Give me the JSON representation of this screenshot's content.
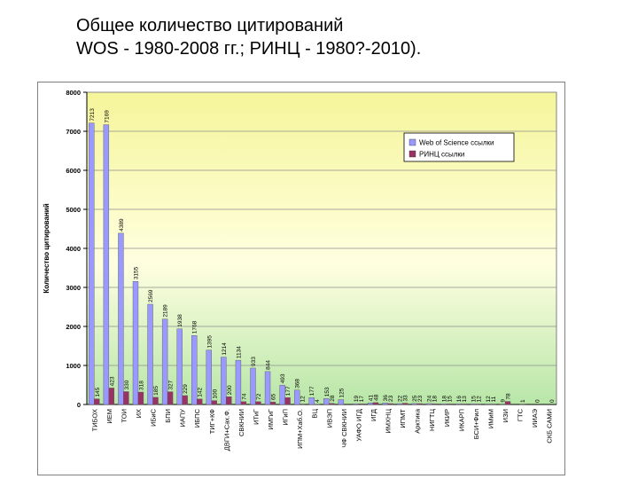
{
  "slide": {
    "title_line1": "Общее количество цитирований",
    "title_line2": "WOS - 1980-2008 гг.; РИНЦ - 1980?-2010)."
  },
  "chart_data": {
    "type": "bar",
    "ylabel": "Количество цитирований",
    "ylim": [
      0,
      8000
    ],
    "yticks": [
      0,
      1000,
      2000,
      3000,
      4000,
      5000,
      6000,
      7000,
      8000
    ],
    "grid": true,
    "legend_position": "top-right",
    "background_gradient": [
      "#f5f59a",
      "#ffffe0",
      "#b8e6a8"
    ],
    "categories": [
      "ТИБОХ",
      "ИЕМ",
      "ТОИ",
      "ИХ",
      "ИБиС",
      "БПИ",
      "ИАПУ",
      "ИБПС",
      "ТИГ+КФ",
      "ДВГИ+Сах.Ф.",
      "СВКНИИ",
      "ИТиГ",
      "ИМГиГ",
      "ИГиП",
      "ИПМ+Хаб.О.",
      "ВЦ",
      "ИВЭП",
      "ЧФ СВКНИИ",
      "УАФО ИГД",
      "ИГД",
      "ИМХНЦ",
      "ИПМТ",
      "Арктика",
      "НИГТЦ",
      "ИКИР",
      "ИКАРП",
      "БСИ+Фил",
      "ИМиМ",
      "ИЗИ",
      "ГТС",
      "ИИАЭ",
      "СКБ САМИ"
    ],
    "series": [
      {
        "name": "Web of Science ссылки",
        "color": "#9999ff",
        "values": [
          7213,
          7169,
          4389,
          3155,
          2569,
          2189,
          1938,
          1768,
          1395,
          1214,
          1134,
          933,
          844,
          493,
          368,
          177,
          153,
          125,
          19,
          41,
          36,
          22,
          25,
          24,
          18,
          16,
          15,
          12,
          9,
          0,
          0,
          0
        ],
        "labels": [
          "7213",
          "7169",
          "4389",
          "3155",
          "2569",
          "2189",
          "1938",
          "1768",
          "1395",
          "1214",
          "1134",
          "933",
          "844",
          "493",
          "368",
          "177",
          "153",
          "125",
          "19",
          "41",
          "36",
          "22",
          "25",
          "24",
          "18",
          "16",
          "15",
          "12",
          "9",
          "",
          "",
          ""
        ]
      },
      {
        "name": "РИНЦ ссылки",
        "color": "#993366",
        "values": [
          145,
          423,
          330,
          318,
          185,
          327,
          229,
          142,
          100,
          200,
          74,
          72,
          65,
          177,
          12,
          4,
          28,
          0,
          17,
          48,
          23,
          33,
          23,
          18,
          15,
          13,
          12,
          11,
          78,
          1,
          0,
          0
        ],
        "labels": [
          "145",
          "423",
          "330",
          "318",
          "185",
          "327",
          "229",
          "142",
          "100",
          "200",
          "74",
          "72",
          "65",
          "177",
          "12",
          "4",
          "28",
          "",
          "17",
          "48",
          "23",
          "33",
          "23",
          "18",
          "15",
          "13",
          "12",
          "11",
          "78",
          "1",
          "0",
          "0"
        ]
      }
    ]
  }
}
